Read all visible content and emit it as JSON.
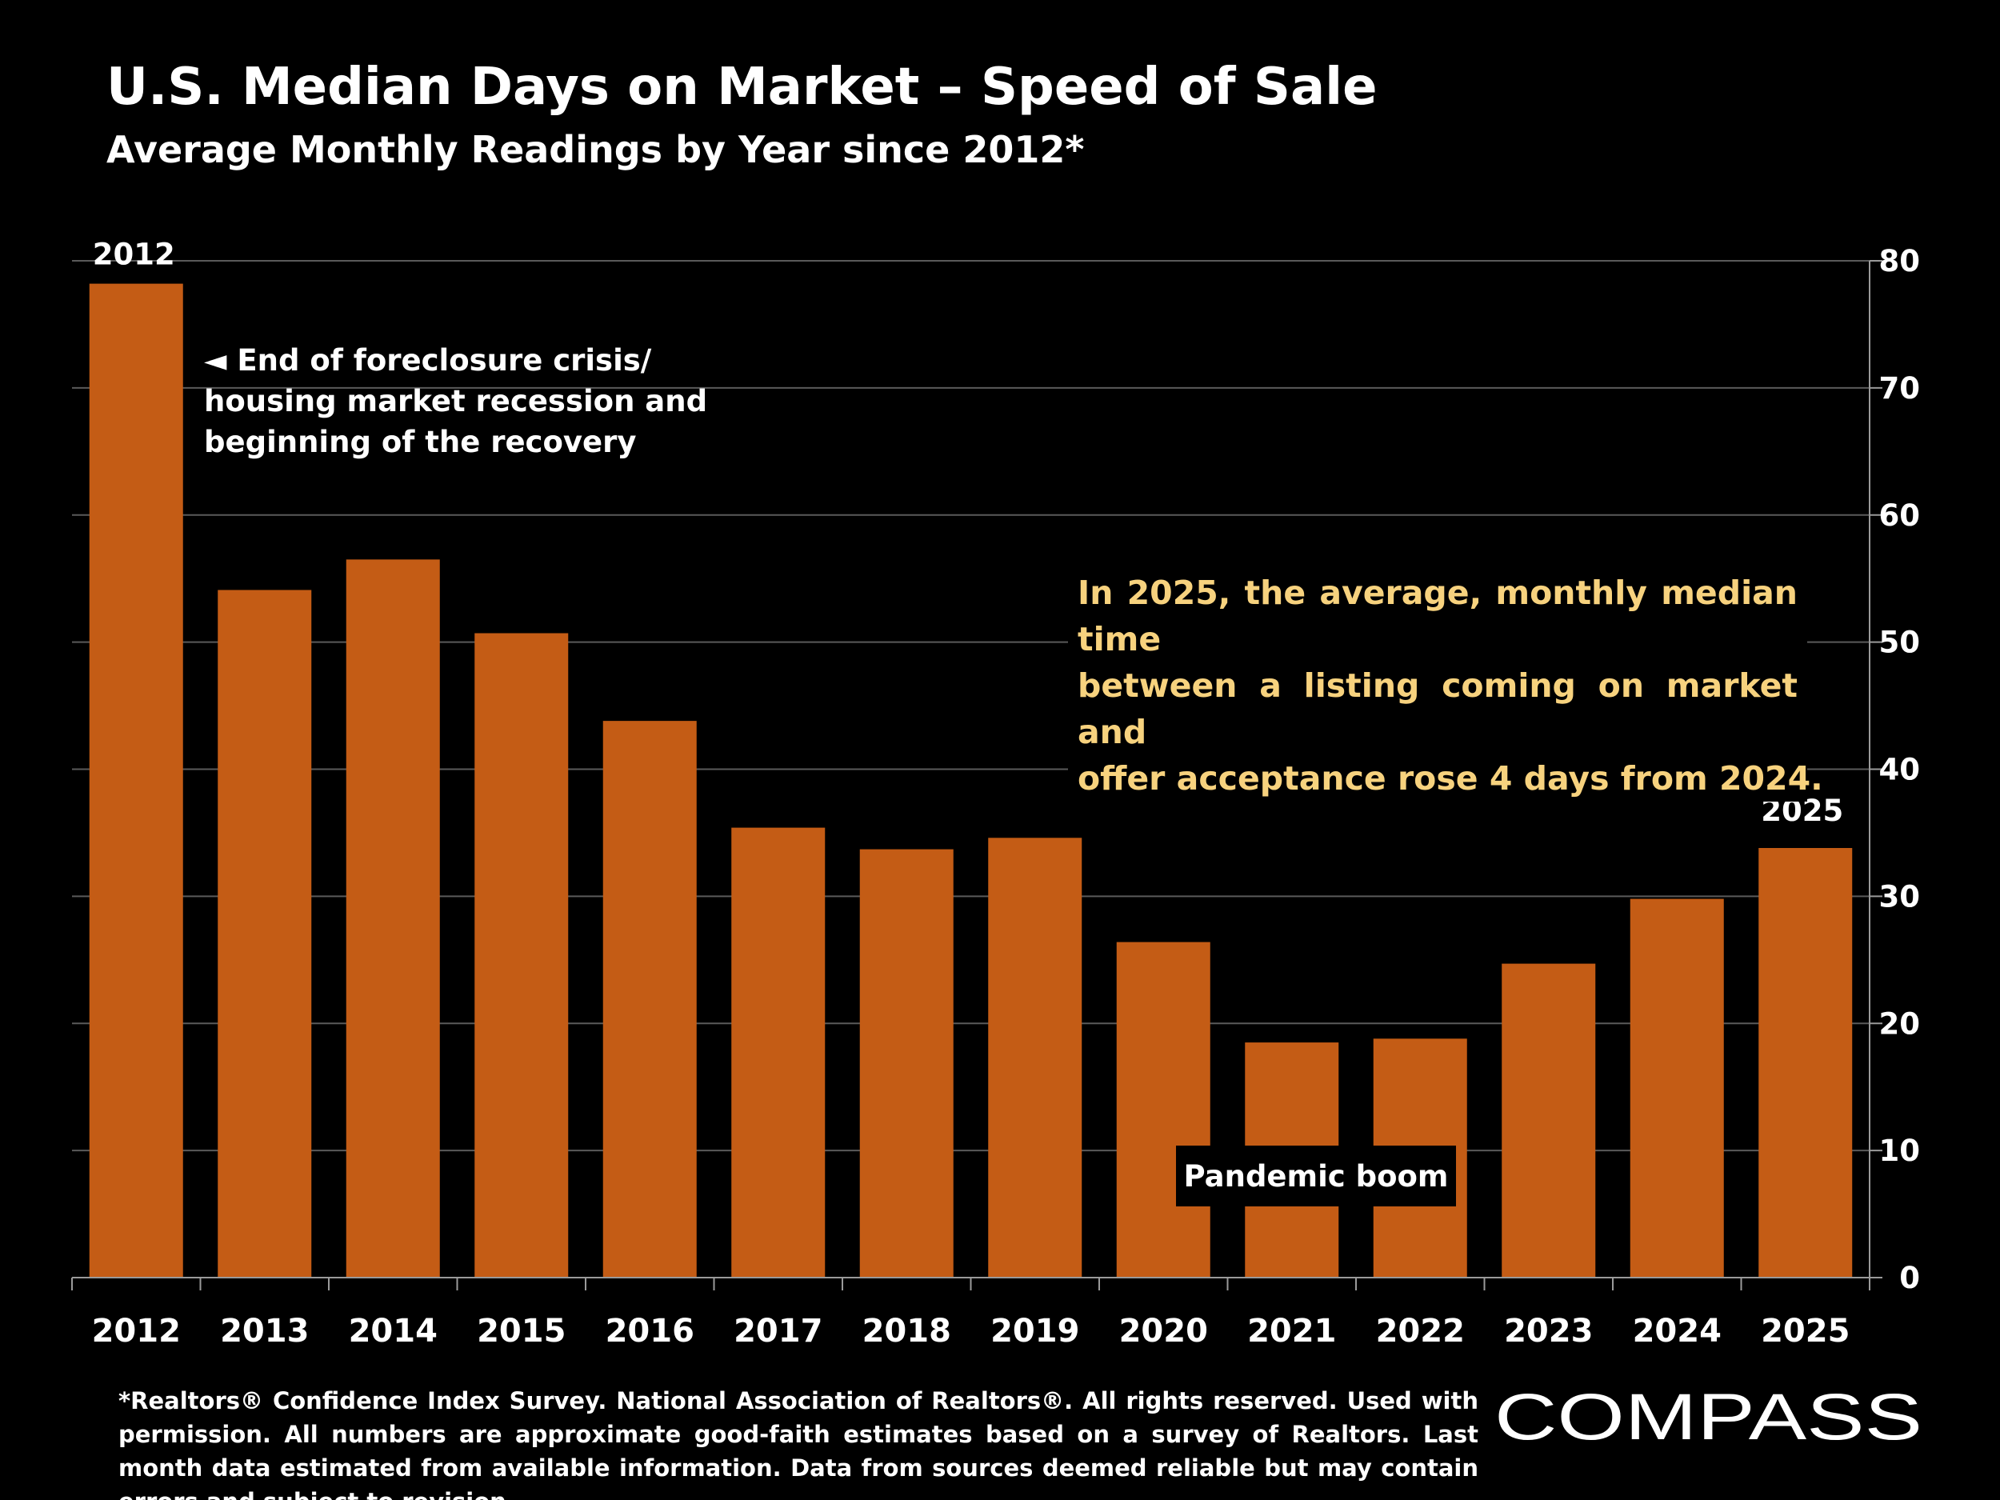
{
  "header": {
    "title": "U.S. Median Days on Market – Speed of Sale",
    "subtitle": "Average Monthly Readings by Year since 2012*"
  },
  "chart_data": {
    "type": "bar",
    "categories": [
      "2012",
      "2013",
      "2014",
      "2015",
      "2016",
      "2017",
      "2018",
      "2019",
      "2020",
      "2021",
      "2022",
      "2023",
      "2024",
      "2025"
    ],
    "values": [
      78.2,
      54.1,
      56.5,
      50.7,
      43.8,
      35.4,
      33.7,
      34.6,
      26.4,
      18.5,
      18.8,
      24.7,
      29.8,
      33.8
    ],
    "ylim": [
      0,
      80
    ],
    "yticks": [
      0,
      10,
      20,
      30,
      40,
      50,
      60,
      70,
      80
    ],
    "y_axis_side": "right",
    "grid": true,
    "bar_color": "#c45c15",
    "bar_labels": {
      "first": "2012",
      "last": "2025"
    }
  },
  "annotations": {
    "crisis_lines": [
      "◄ End of foreclosure crisis/",
      "housing market recession and",
      "beginning of the recovery"
    ],
    "note_2025_lines": [
      "In 2025, the average, monthly median time",
      "between a listing coming on market and",
      "offer acceptance rose 4 days from 2024."
    ],
    "pandemic": "Pandemic boom"
  },
  "footnote": "*Realtors® Confidence Index Survey. National Association of Realtors®. All rights reserved. Used with permission. All numbers are approximate good-faith estimates based on a survey of Realtors. Last month data estimated from available information. Data from sources deemed reliable but may contain errors and subject to revision.",
  "logo": {
    "text": "COMPASS"
  },
  "colors": {
    "background": "#000000",
    "bar": "#c45c15",
    "highlight_text": "#f7d27e",
    "text": "#ffffff"
  }
}
